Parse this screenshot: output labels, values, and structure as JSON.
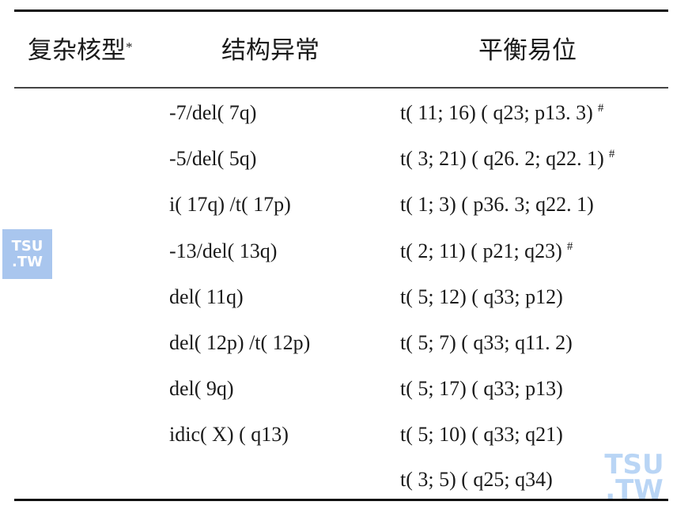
{
  "table": {
    "headers": [
      "复杂核型",
      "结构异常",
      "平衡易位"
    ],
    "header_marker": "*",
    "structural_abnormalities": [
      "-7/del( 7q)",
      "-5/del( 5q)",
      "i( 17q) /t( 17p)",
      "-13/del( 13q)",
      "del( 11q)",
      "del( 12p) /t( 12p)",
      "del( 9q)",
      "idic( X) ( q13)"
    ],
    "balanced_translocations": [
      {
        "text": "t( 11; 16) ( q23; p13. 3)",
        "mark": "#"
      },
      {
        "text": "t( 3; 21) ( q26. 2; q22. 1)",
        "mark": "#"
      },
      {
        "text": "t( 1; 3) ( p36. 3; q22. 1)",
        "mark": ""
      },
      {
        "text": "t( 2; 11) ( p21; q23)",
        "mark": "#"
      },
      {
        "text": "t( 5; 12) ( q33; p12)",
        "mark": ""
      },
      {
        "text": "t( 5; 7) ( q33; q11. 2)",
        "mark": ""
      },
      {
        "text": "t( 5; 17) ( q33; p13)",
        "mark": ""
      },
      {
        "text": "t( 5; 10) ( q33; q21)",
        "mark": ""
      },
      {
        "text": "t( 3; 5) ( q25; q34)",
        "mark": ""
      }
    ]
  },
  "watermark": {
    "line1": "TSU",
    "line2": ".TW"
  }
}
